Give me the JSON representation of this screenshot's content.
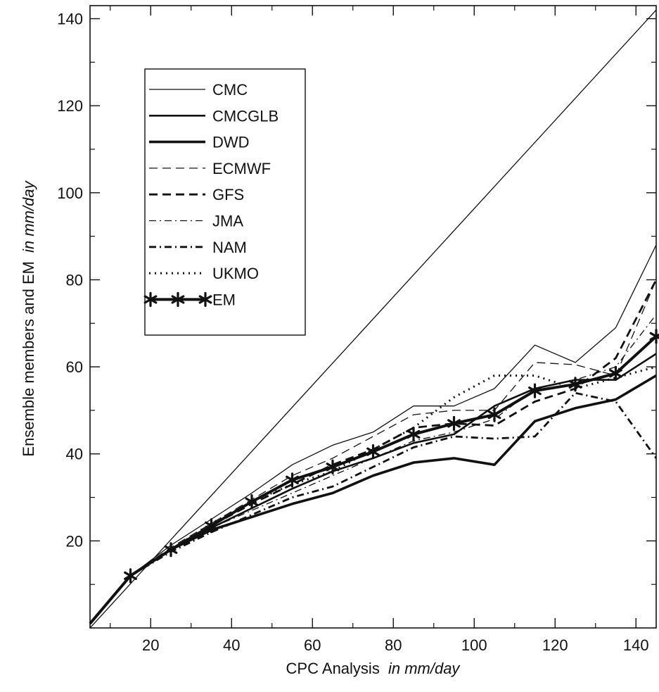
{
  "chart_data": {
    "type": "line",
    "xlabel": {
      "main": "CPC Analysis",
      "unit": "in mm/day"
    },
    "ylabel": {
      "main": "Ensemble members and EM",
      "unit": "in mm/day"
    },
    "xlim": [
      5,
      145
    ],
    "ylim": [
      0,
      143
    ],
    "xticks": [
      20,
      40,
      60,
      80,
      100,
      120,
      140
    ],
    "yticks": [
      20,
      40,
      60,
      80,
      100,
      120,
      140
    ],
    "grid": false,
    "legend_position": "top-left",
    "reference_line": {
      "x": [
        5,
        145
      ],
      "y": [
        0,
        142
      ]
    },
    "x": [
      5,
      15,
      25,
      35,
      45,
      55,
      65,
      75,
      85,
      95,
      105,
      115,
      125,
      135,
      145
    ],
    "series": [
      {
        "name": "CMC",
        "style": "thin-solid",
        "values": [
          1,
          12,
          19,
          25,
          31,
          37.5,
          42,
          45,
          51,
          51,
          55,
          65,
          61,
          69,
          88
        ]
      },
      {
        "name": "CMCGLB",
        "style": "medium-solid",
        "values": [
          1,
          12,
          18,
          23,
          27.5,
          32,
          36,
          39,
          42.5,
          44.5,
          51,
          55,
          57,
          57,
          63
        ]
      },
      {
        "name": "DWD",
        "style": "thick-solid",
        "values": [
          1,
          12,
          18,
          22.5,
          25.5,
          28.5,
          31,
          35,
          38,
          39,
          37.5,
          47.5,
          50.5,
          52.5,
          58
        ]
      },
      {
        "name": "ECMWF",
        "style": "thin-dash",
        "values": [
          1,
          12,
          18.5,
          24,
          29.5,
          35,
          39,
          44,
          49,
          50,
          50,
          61,
          60.5,
          58,
          80
        ]
      },
      {
        "name": "GFS",
        "style": "thick-dash",
        "values": [
          1,
          12,
          18,
          23.5,
          28.5,
          33,
          37.5,
          41,
          46,
          47,
          46.5,
          52,
          55,
          62,
          80
        ]
      },
      {
        "name": "JMA",
        "style": "thin-dashdot",
        "values": [
          1,
          12,
          18,
          23,
          27,
          31,
          35,
          39,
          43,
          45,
          48,
          55,
          57,
          60,
          72
        ]
      },
      {
        "name": "NAM",
        "style": "thick-dashdot",
        "values": [
          1,
          12,
          17.5,
          22,
          26,
          30,
          32.5,
          37,
          41.5,
          44,
          43.5,
          44,
          54,
          52,
          39
        ]
      },
      {
        "name": "UKMO",
        "style": "thick-dot",
        "values": [
          1,
          12,
          18,
          24,
          29,
          33,
          36,
          41,
          46,
          53,
          58,
          58,
          55,
          57.5,
          60
        ]
      },
      {
        "name": "EM",
        "style": "thick-solid-star",
        "values": [
          1,
          12,
          18,
          23.5,
          29,
          34,
          37,
          40.5,
          44.5,
          47,
          49,
          54.5,
          56,
          58.5,
          67
        ]
      }
    ]
  }
}
